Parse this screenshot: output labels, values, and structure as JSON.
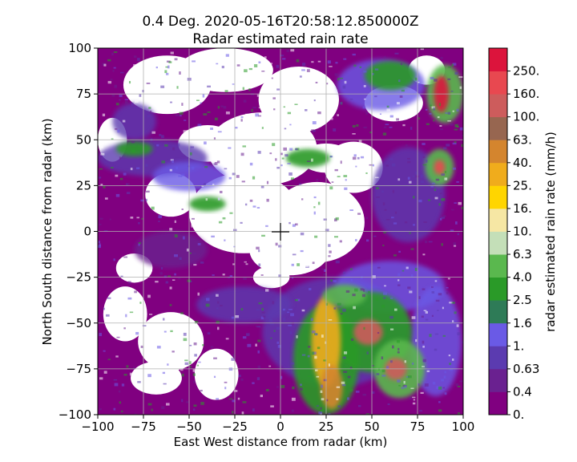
{
  "chart_data": {
    "type": "heatmap",
    "title_line1": "0.4 Deg. 2020-05-16T20:58:12.850000Z",
    "title_line2": "Radar estimated rain rate",
    "xlabel": "East West distance from radar (km)",
    "ylabel": "North South distance from radar (km)",
    "xlim": [
      -100,
      100
    ],
    "ylim": [
      -100,
      100
    ],
    "xticks": [
      "−100",
      "−75",
      "−50",
      "−25",
      "0",
      "25",
      "50",
      "75",
      "100"
    ],
    "yticks": [
      "−100",
      "−75",
      "−50",
      "−25",
      "0",
      "25",
      "50",
      "75",
      "100"
    ],
    "xtick_values": [
      -100,
      -75,
      -50,
      -25,
      0,
      25,
      50,
      75,
      100
    ],
    "ytick_values": [
      -100,
      -75,
      -50,
      -25,
      0,
      25,
      50,
      75,
      100
    ],
    "grid": true,
    "radar_marker": [
      0,
      0
    ],
    "colorbar": {
      "label": "radar estimated rain rate (mm/h)",
      "tick_labels": [
        "0.",
        "0.4",
        "0.63",
        "1.",
        "1.6",
        "2.5",
        "4.0",
        "6.3",
        "10.",
        "16.",
        "25.",
        "40.",
        "63.",
        "100.",
        "160.",
        "250."
      ],
      "colors": [
        "#800080",
        "#6a2190",
        "#5b3bb0",
        "#6a5ae6",
        "#2e7b57",
        "#2a9a28",
        "#5ab84e",
        "#c4dfb8",
        "#f6e7a4",
        "#ffd500",
        "#f0ac1c",
        "#d4852e",
        "#976650",
        "#cd5c5c",
        "#e84850",
        "#dc143c"
      ]
    }
  }
}
